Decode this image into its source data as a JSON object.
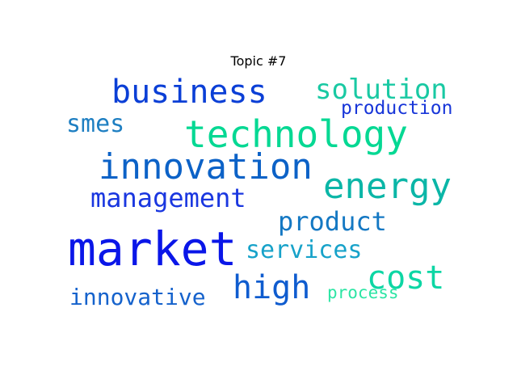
{
  "title": "Topic #7",
  "words": [
    {
      "text": "business",
      "color": "#0B3FD6"
    },
    {
      "text": "solution",
      "color": "#19C9A3"
    },
    {
      "text": "production",
      "color": "#1836D9"
    },
    {
      "text": "smes",
      "color": "#1E7FC2"
    },
    {
      "text": "technology",
      "color": "#05D893"
    },
    {
      "text": "innovation",
      "color": "#0C62C7"
    },
    {
      "text": "energy",
      "color": "#0BB6A7"
    },
    {
      "text": "management",
      "color": "#1A37E0"
    },
    {
      "text": "product",
      "color": "#1478C3"
    },
    {
      "text": "market",
      "color": "#0A16E8"
    },
    {
      "text": "services",
      "color": "#17A2C9"
    },
    {
      "text": "high",
      "color": "#0F5CCF"
    },
    {
      "text": "cost",
      "color": "#0DD6A4"
    },
    {
      "text": "innovative",
      "color": "#1562CC"
    },
    {
      "text": "process",
      "color": "#2CE5A4"
    }
  ]
}
